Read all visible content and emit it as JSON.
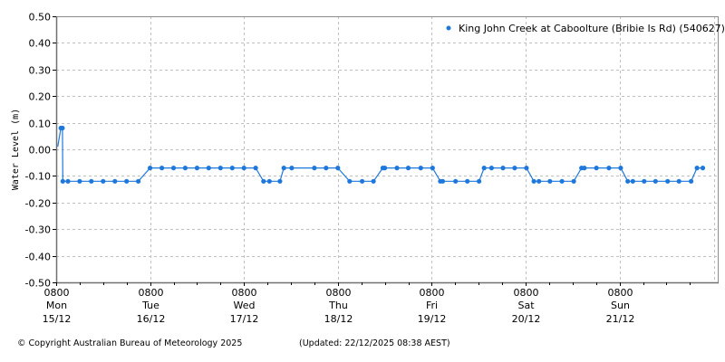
{
  "chart_data": {
    "type": "line",
    "title": "",
    "xlabel": "",
    "ylabel": "Water Level (m)",
    "ylim": [
      -0.5,
      0.5
    ],
    "yticks": [
      "0.50",
      "0.40",
      "0.30",
      "0.20",
      "0.10",
      "0.00",
      "-0.10",
      "-0.20",
      "-0.30",
      "-0.40",
      "-0.50"
    ],
    "grid": true,
    "legend_position": "top-right",
    "xticks": [
      {
        "time": "0800",
        "day": "Mon",
        "date": "15/12"
      },
      {
        "time": "0800",
        "day": "Tue",
        "date": "16/12"
      },
      {
        "time": "0800",
        "day": "Wed",
        "date": "17/12"
      },
      {
        "time": "0800",
        "day": "Thu",
        "date": "18/12"
      },
      {
        "time": "0800",
        "day": "Fri",
        "date": "19/12"
      },
      {
        "time": "0800",
        "day": "Sat",
        "date": "20/12"
      },
      {
        "time": "0800",
        "day": "Sun",
        "date": "21/12"
      }
    ],
    "x_unit": "hours since Mon 15/12 0800",
    "x_range": [
      0,
      169
    ],
    "series": [
      {
        "name": "King John Creek at Caboolture (Bribie Is Rd) (540627)",
        "color": "#1e78dc",
        "points": [
          [
            0.4,
            0.01
          ],
          [
            1.2,
            0.08
          ],
          [
            1.6,
            0.08
          ],
          [
            1.7,
            -0.12
          ],
          [
            3.0,
            -0.12
          ],
          [
            6.0,
            -0.12
          ],
          [
            9.0,
            -0.12
          ],
          [
            12.0,
            -0.12
          ],
          [
            15.0,
            -0.12
          ],
          [
            18.0,
            -0.12
          ],
          [
            21.0,
            -0.12
          ],
          [
            24.0,
            -0.07
          ],
          [
            27.0,
            -0.07
          ],
          [
            30.0,
            -0.07
          ],
          [
            33.0,
            -0.07
          ],
          [
            36.0,
            -0.07
          ],
          [
            39.0,
            -0.07
          ],
          [
            42.0,
            -0.07
          ],
          [
            45.0,
            -0.07
          ],
          [
            48.0,
            -0.07
          ],
          [
            51.0,
            -0.07
          ],
          [
            53.0,
            -0.12
          ],
          [
            54.5,
            -0.12
          ],
          [
            57.2,
            -0.12
          ],
          [
            58.2,
            -0.07
          ],
          [
            60.2,
            -0.07
          ],
          [
            66.0,
            -0.07
          ],
          [
            69.0,
            -0.07
          ],
          [
            72.0,
            -0.07
          ],
          [
            75.0,
            -0.12
          ],
          [
            78.2,
            -0.12
          ],
          [
            81.1,
            -0.12
          ],
          [
            83.5,
            -0.07
          ],
          [
            84.0,
            -0.07
          ],
          [
            87.1,
            -0.07
          ],
          [
            90.0,
            -0.07
          ],
          [
            93.2,
            -0.07
          ],
          [
            96.2,
            -0.07
          ],
          [
            98.2,
            -0.12
          ],
          [
            98.8,
            -0.12
          ],
          [
            102.1,
            -0.12
          ],
          [
            105.1,
            -0.12
          ],
          [
            108.1,
            -0.12
          ],
          [
            109.4,
            -0.07
          ],
          [
            111.3,
            -0.07
          ],
          [
            114.2,
            -0.07
          ],
          [
            117.2,
            -0.07
          ],
          [
            120.2,
            -0.07
          ],
          [
            122.1,
            -0.12
          ],
          [
            123.4,
            -0.12
          ],
          [
            126.2,
            -0.12
          ],
          [
            129.3,
            -0.12
          ],
          [
            132.3,
            -0.12
          ],
          [
            134.3,
            -0.07
          ],
          [
            135.0,
            -0.07
          ],
          [
            138.1,
            -0.07
          ],
          [
            141.3,
            -0.07
          ],
          [
            144.3,
            -0.07
          ],
          [
            146.1,
            -0.12
          ],
          [
            147.4,
            -0.12
          ],
          [
            150.3,
            -0.12
          ],
          [
            153.2,
            -0.12
          ],
          [
            156.3,
            -0.12
          ],
          [
            159.2,
            -0.12
          ],
          [
            162.3,
            -0.12
          ],
          [
            163.8,
            -0.07
          ],
          [
            165.3,
            -0.07
          ]
        ]
      }
    ]
  },
  "legend": {
    "label": "King John Creek at Caboolture (Bribie Is Rd) (540627)"
  },
  "footer": {
    "copyright": "© Copyright Australian Bureau of Meteorology 2025",
    "updated": "(Updated: 22/12/2025 08:38 AEST)"
  }
}
